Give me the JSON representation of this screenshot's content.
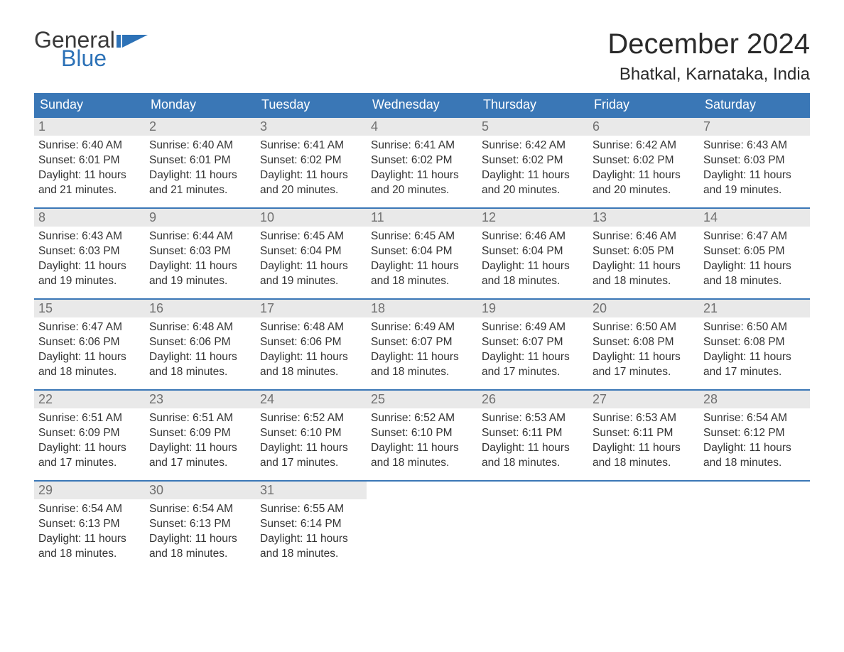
{
  "logo": {
    "word1": "General",
    "word2": "Blue"
  },
  "title": "December 2024",
  "location": "Bhatkal, Karnataka, India",
  "colors": {
    "header_bg": "#3a77b6",
    "header_text": "#ffffff",
    "daynum_bg": "#e9e9e9",
    "daynum_text": "#707070",
    "body_text": "#333333",
    "rule": "#3a77b6",
    "page_bg": "#ffffff",
    "logo_gray": "#3a3a3a",
    "logo_blue": "#2d72b7"
  },
  "weekdays": [
    "Sunday",
    "Monday",
    "Tuesday",
    "Wednesday",
    "Thursday",
    "Friday",
    "Saturday"
  ],
  "weeks": [
    [
      {
        "n": "1",
        "sr": "Sunrise: 6:40 AM",
        "ss": "Sunset: 6:01 PM",
        "d1": "Daylight: 11 hours",
        "d2": "and 21 minutes."
      },
      {
        "n": "2",
        "sr": "Sunrise: 6:40 AM",
        "ss": "Sunset: 6:01 PM",
        "d1": "Daylight: 11 hours",
        "d2": "and 21 minutes."
      },
      {
        "n": "3",
        "sr": "Sunrise: 6:41 AM",
        "ss": "Sunset: 6:02 PM",
        "d1": "Daylight: 11 hours",
        "d2": "and 20 minutes."
      },
      {
        "n": "4",
        "sr": "Sunrise: 6:41 AM",
        "ss": "Sunset: 6:02 PM",
        "d1": "Daylight: 11 hours",
        "d2": "and 20 minutes."
      },
      {
        "n": "5",
        "sr": "Sunrise: 6:42 AM",
        "ss": "Sunset: 6:02 PM",
        "d1": "Daylight: 11 hours",
        "d2": "and 20 minutes."
      },
      {
        "n": "6",
        "sr": "Sunrise: 6:42 AM",
        "ss": "Sunset: 6:02 PM",
        "d1": "Daylight: 11 hours",
        "d2": "and 20 minutes."
      },
      {
        "n": "7",
        "sr": "Sunrise: 6:43 AM",
        "ss": "Sunset: 6:03 PM",
        "d1": "Daylight: 11 hours",
        "d2": "and 19 minutes."
      }
    ],
    [
      {
        "n": "8",
        "sr": "Sunrise: 6:43 AM",
        "ss": "Sunset: 6:03 PM",
        "d1": "Daylight: 11 hours",
        "d2": "and 19 minutes."
      },
      {
        "n": "9",
        "sr": "Sunrise: 6:44 AM",
        "ss": "Sunset: 6:03 PM",
        "d1": "Daylight: 11 hours",
        "d2": "and 19 minutes."
      },
      {
        "n": "10",
        "sr": "Sunrise: 6:45 AM",
        "ss": "Sunset: 6:04 PM",
        "d1": "Daylight: 11 hours",
        "d2": "and 19 minutes."
      },
      {
        "n": "11",
        "sr": "Sunrise: 6:45 AM",
        "ss": "Sunset: 6:04 PM",
        "d1": "Daylight: 11 hours",
        "d2": "and 18 minutes."
      },
      {
        "n": "12",
        "sr": "Sunrise: 6:46 AM",
        "ss": "Sunset: 6:04 PM",
        "d1": "Daylight: 11 hours",
        "d2": "and 18 minutes."
      },
      {
        "n": "13",
        "sr": "Sunrise: 6:46 AM",
        "ss": "Sunset: 6:05 PM",
        "d1": "Daylight: 11 hours",
        "d2": "and 18 minutes."
      },
      {
        "n": "14",
        "sr": "Sunrise: 6:47 AM",
        "ss": "Sunset: 6:05 PM",
        "d1": "Daylight: 11 hours",
        "d2": "and 18 minutes."
      }
    ],
    [
      {
        "n": "15",
        "sr": "Sunrise: 6:47 AM",
        "ss": "Sunset: 6:06 PM",
        "d1": "Daylight: 11 hours",
        "d2": "and 18 minutes."
      },
      {
        "n": "16",
        "sr": "Sunrise: 6:48 AM",
        "ss": "Sunset: 6:06 PM",
        "d1": "Daylight: 11 hours",
        "d2": "and 18 minutes."
      },
      {
        "n": "17",
        "sr": "Sunrise: 6:48 AM",
        "ss": "Sunset: 6:06 PM",
        "d1": "Daylight: 11 hours",
        "d2": "and 18 minutes."
      },
      {
        "n": "18",
        "sr": "Sunrise: 6:49 AM",
        "ss": "Sunset: 6:07 PM",
        "d1": "Daylight: 11 hours",
        "d2": "and 18 minutes."
      },
      {
        "n": "19",
        "sr": "Sunrise: 6:49 AM",
        "ss": "Sunset: 6:07 PM",
        "d1": "Daylight: 11 hours",
        "d2": "and 17 minutes."
      },
      {
        "n": "20",
        "sr": "Sunrise: 6:50 AM",
        "ss": "Sunset: 6:08 PM",
        "d1": "Daylight: 11 hours",
        "d2": "and 17 minutes."
      },
      {
        "n": "21",
        "sr": "Sunrise: 6:50 AM",
        "ss": "Sunset: 6:08 PM",
        "d1": "Daylight: 11 hours",
        "d2": "and 17 minutes."
      }
    ],
    [
      {
        "n": "22",
        "sr": "Sunrise: 6:51 AM",
        "ss": "Sunset: 6:09 PM",
        "d1": "Daylight: 11 hours",
        "d2": "and 17 minutes."
      },
      {
        "n": "23",
        "sr": "Sunrise: 6:51 AM",
        "ss": "Sunset: 6:09 PM",
        "d1": "Daylight: 11 hours",
        "d2": "and 17 minutes."
      },
      {
        "n": "24",
        "sr": "Sunrise: 6:52 AM",
        "ss": "Sunset: 6:10 PM",
        "d1": "Daylight: 11 hours",
        "d2": "and 17 minutes."
      },
      {
        "n": "25",
        "sr": "Sunrise: 6:52 AM",
        "ss": "Sunset: 6:10 PM",
        "d1": "Daylight: 11 hours",
        "d2": "and 18 minutes."
      },
      {
        "n": "26",
        "sr": "Sunrise: 6:53 AM",
        "ss": "Sunset: 6:11 PM",
        "d1": "Daylight: 11 hours",
        "d2": "and 18 minutes."
      },
      {
        "n": "27",
        "sr": "Sunrise: 6:53 AM",
        "ss": "Sunset: 6:11 PM",
        "d1": "Daylight: 11 hours",
        "d2": "and 18 minutes."
      },
      {
        "n": "28",
        "sr": "Sunrise: 6:54 AM",
        "ss": "Sunset: 6:12 PM",
        "d1": "Daylight: 11 hours",
        "d2": "and 18 minutes."
      }
    ],
    [
      {
        "n": "29",
        "sr": "Sunrise: 6:54 AM",
        "ss": "Sunset: 6:13 PM",
        "d1": "Daylight: 11 hours",
        "d2": "and 18 minutes."
      },
      {
        "n": "30",
        "sr": "Sunrise: 6:54 AM",
        "ss": "Sunset: 6:13 PM",
        "d1": "Daylight: 11 hours",
        "d2": "and 18 minutes."
      },
      {
        "n": "31",
        "sr": "Sunrise: 6:55 AM",
        "ss": "Sunset: 6:14 PM",
        "d1": "Daylight: 11 hours",
        "d2": "and 18 minutes."
      },
      null,
      null,
      null,
      null
    ]
  ]
}
